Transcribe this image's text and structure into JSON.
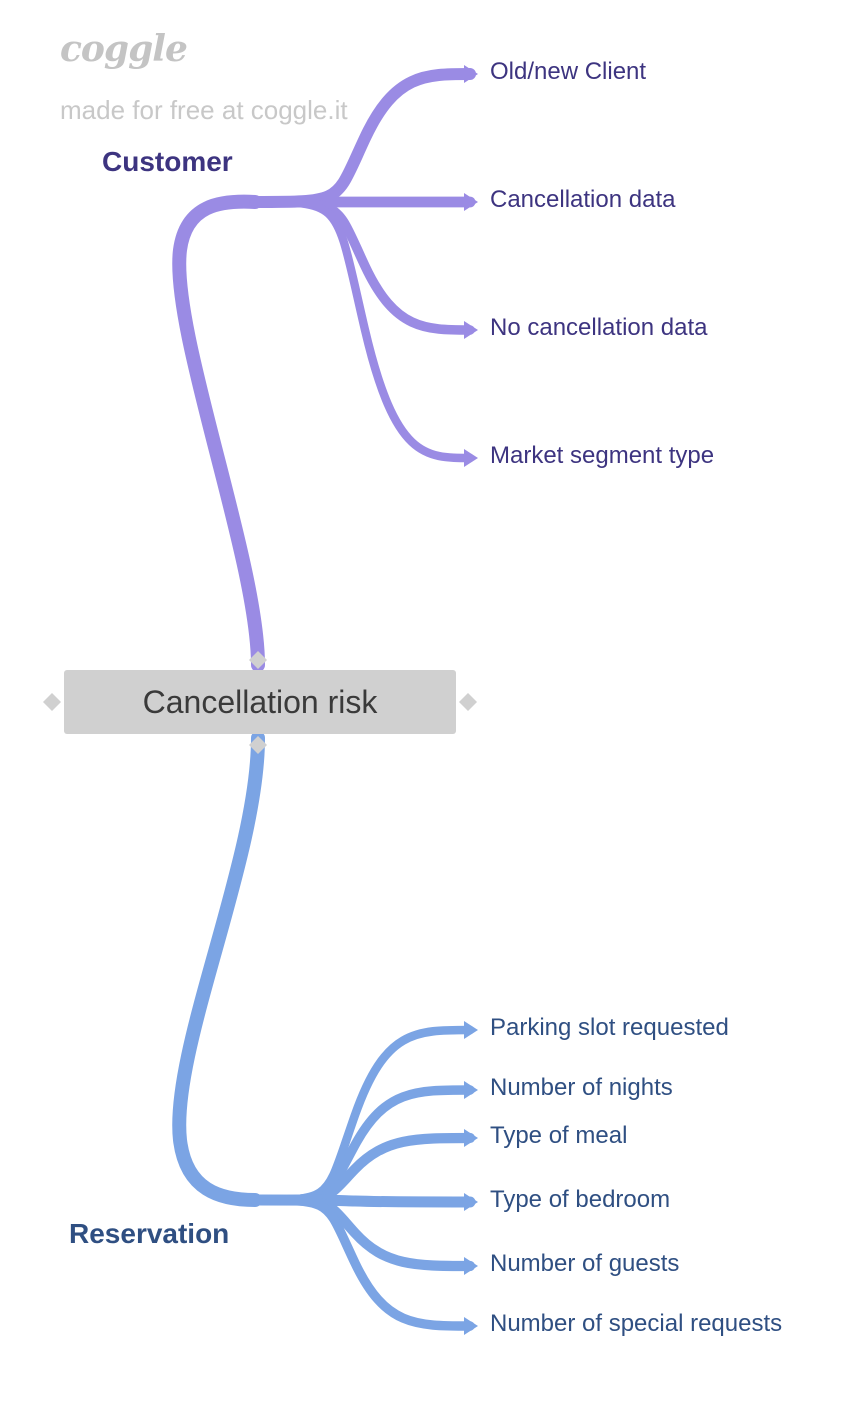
{
  "watermark": {
    "logo": "coggle",
    "text": "made for free at coggle.it"
  },
  "root": {
    "label": "Cancellation risk"
  },
  "branches": [
    {
      "id": "customer",
      "label": "Customer",
      "color": "#9a8be4",
      "label_color": "#3d3480",
      "children": [
        "Old/new Client",
        "Cancellation data",
        "No cancellation data",
        "Market segment type"
      ]
    },
    {
      "id": "reservation",
      "label": "Reservation",
      "color": "#7ba4e4",
      "label_color": "#2f4f82",
      "children": [
        "Parking slot requested",
        "Number of nights",
        "Type of meal",
        "Type of bedroom",
        "Number of guests",
        "Number of special requests"
      ]
    }
  ],
  "colors": {
    "root_fill": "#d0d0d0",
    "root_text": "#3a3a3a",
    "watermark": "#c4c4c4",
    "customer_leaf_text": "#3d3480",
    "reservation_leaf_text": "#2f4f82"
  }
}
